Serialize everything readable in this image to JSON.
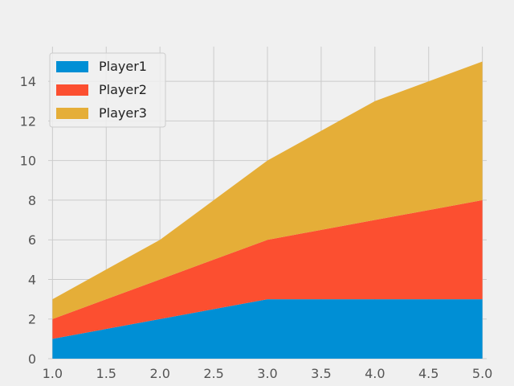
{
  "chart_data": {
    "type": "area",
    "stacked": true,
    "x": [
      1,
      2,
      3,
      4,
      5
    ],
    "series": [
      {
        "name": "Player1",
        "values": [
          1,
          2,
          3,
          3,
          3
        ],
        "color": "#008fd5"
      },
      {
        "name": "Player2",
        "values": [
          1,
          2,
          3,
          4,
          5
        ],
        "color": "#fc4f30"
      },
      {
        "name": "Player3",
        "values": [
          1,
          2,
          4,
          6,
          7
        ],
        "color": "#e5ae38"
      }
    ],
    "title": "",
    "xlabel": "",
    "ylabel": "",
    "xlim": [
      0.96,
      5.04
    ],
    "ylim": [
      0,
      15.75
    ],
    "x_ticks": [
      "1.0",
      "1.5",
      "2.0",
      "2.5",
      "3.0",
      "3.5",
      "4.0",
      "4.5",
      "5.0"
    ],
    "y_ticks": [
      "0",
      "2",
      "4",
      "6",
      "8",
      "10",
      "12",
      "14"
    ],
    "grid": true,
    "legend_position": "upper-left",
    "style": {
      "background": "#f0f0f0",
      "grid_color": "#cbcbcb"
    }
  }
}
